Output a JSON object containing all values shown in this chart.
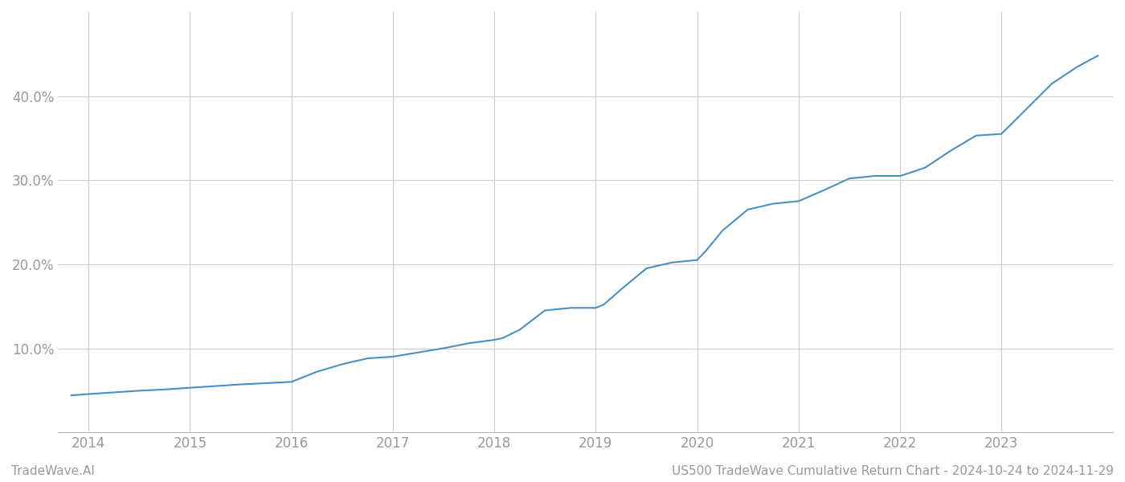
{
  "title": "US500 TradeWave Cumulative Return Chart - 2024-10-24 to 2024-11-29",
  "watermark": "TradeWave.AI",
  "line_color": "#4a90c4",
  "line_width": 1.5,
  "background_color": "#ffffff",
  "grid_color": "#cccccc",
  "x_years": [
    2014,
    2015,
    2016,
    2017,
    2018,
    2019,
    2020,
    2021,
    2022,
    2023
  ],
  "x_values": [
    2013.83,
    2014.0,
    2014.25,
    2014.5,
    2014.75,
    2015.0,
    2015.25,
    2015.5,
    2015.75,
    2016.0,
    2016.25,
    2016.5,
    2016.75,
    2017.0,
    2017.25,
    2017.5,
    2017.75,
    2018.0,
    2018.08,
    2018.25,
    2018.5,
    2018.75,
    2019.0,
    2019.08,
    2019.25,
    2019.5,
    2019.75,
    2020.0,
    2020.08,
    2020.25,
    2020.5,
    2020.75,
    2021.0,
    2021.25,
    2021.5,
    2021.75,
    2022.0,
    2022.08,
    2022.25,
    2022.5,
    2022.75,
    2023.0,
    2023.25,
    2023.5,
    2023.75,
    2023.95
  ],
  "y_values": [
    4.4,
    4.55,
    4.75,
    4.95,
    5.1,
    5.3,
    5.5,
    5.7,
    5.85,
    6.0,
    7.2,
    8.1,
    8.8,
    9.0,
    9.5,
    10.0,
    10.6,
    11.0,
    11.2,
    12.2,
    14.5,
    14.8,
    14.8,
    15.2,
    17.0,
    19.5,
    20.2,
    20.5,
    21.5,
    24.0,
    26.5,
    27.2,
    27.5,
    28.8,
    30.2,
    30.5,
    30.5,
    30.8,
    31.5,
    33.5,
    35.3,
    35.5,
    38.5,
    41.5,
    43.5,
    44.8
  ],
  "yticks": [
    10.0,
    20.0,
    30.0,
    40.0
  ],
  "ylim": [
    0,
    50
  ],
  "xlim": [
    2013.7,
    2024.1
  ],
  "title_fontsize": 11,
  "tick_fontsize": 12,
  "watermark_fontsize": 11,
  "label_color": "#999999"
}
